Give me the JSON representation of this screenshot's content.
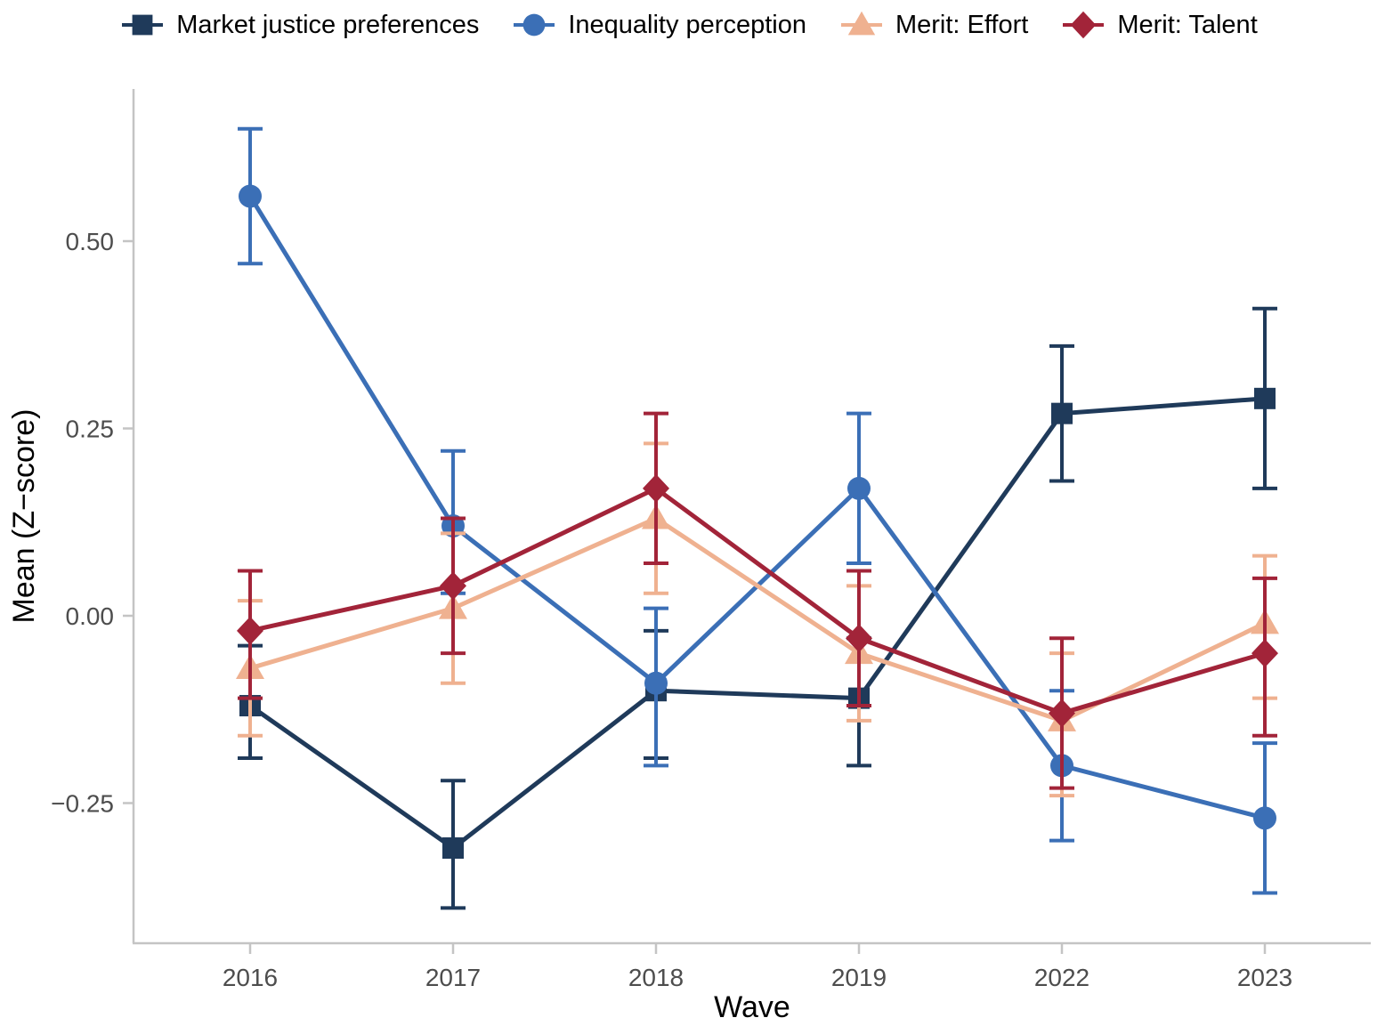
{
  "figure_title": "",
  "chart_data": {
    "type": "line",
    "categories": [
      "2016",
      "2017",
      "2018",
      "2019",
      "2022",
      "2023"
    ],
    "xlabel": "Wave",
    "ylabel": "Mean (Z−score)",
    "ylim": [
      -0.44,
      0.7
    ],
    "yticks": [
      0.5,
      0.25,
      0.0,
      -0.25
    ],
    "ytick_labels": [
      "0.50",
      "0.25",
      "0.00",
      "−0.25"
    ],
    "grid": false,
    "error_bars": true,
    "legend_position": "top",
    "series": [
      {
        "name": "Market justice preferences",
        "marker": "square",
        "color": "#1f3a5a",
        "values": [
          -0.12,
          -0.31,
          -0.1,
          -0.11,
          0.27,
          0.29
        ],
        "ci_low": [
          -0.19,
          -0.39,
          -0.19,
          -0.2,
          0.18,
          0.17
        ],
        "ci_high": [
          -0.04,
          -0.22,
          -0.02,
          -0.03,
          0.36,
          0.41
        ]
      },
      {
        "name": "Inequality perception",
        "marker": "circle",
        "color": "#3b6fb6",
        "values": [
          0.56,
          0.12,
          -0.09,
          0.17,
          -0.2,
          -0.27
        ],
        "ci_low": [
          0.47,
          0.03,
          -0.2,
          0.07,
          -0.3,
          -0.37
        ],
        "ci_high": [
          0.65,
          0.22,
          0.01,
          0.27,
          -0.1,
          -0.17
        ]
      },
      {
        "name": "Merit: Effort",
        "marker": "triangle",
        "color": "#efb190",
        "values": [
          -0.07,
          0.01,
          0.13,
          -0.05,
          -0.14,
          -0.01
        ],
        "ci_low": [
          -0.16,
          -0.09,
          0.03,
          -0.14,
          -0.24,
          -0.11
        ],
        "ci_high": [
          0.02,
          0.11,
          0.23,
          0.04,
          -0.05,
          0.08
        ]
      },
      {
        "name": "Merit: Talent",
        "marker": "diamond",
        "color": "#a22439",
        "values": [
          -0.02,
          0.04,
          0.17,
          -0.03,
          -0.13,
          -0.05
        ],
        "ci_low": [
          -0.11,
          -0.05,
          0.07,
          -0.12,
          -0.23,
          -0.16
        ],
        "ci_high": [
          0.06,
          0.13,
          0.27,
          0.06,
          -0.03,
          0.05
        ]
      }
    ]
  },
  "style_colors": {
    "axis_line": "#c4c4c4",
    "tick_text": "#4d4d4d",
    "title_text": "#000000",
    "background": "#ffffff"
  }
}
